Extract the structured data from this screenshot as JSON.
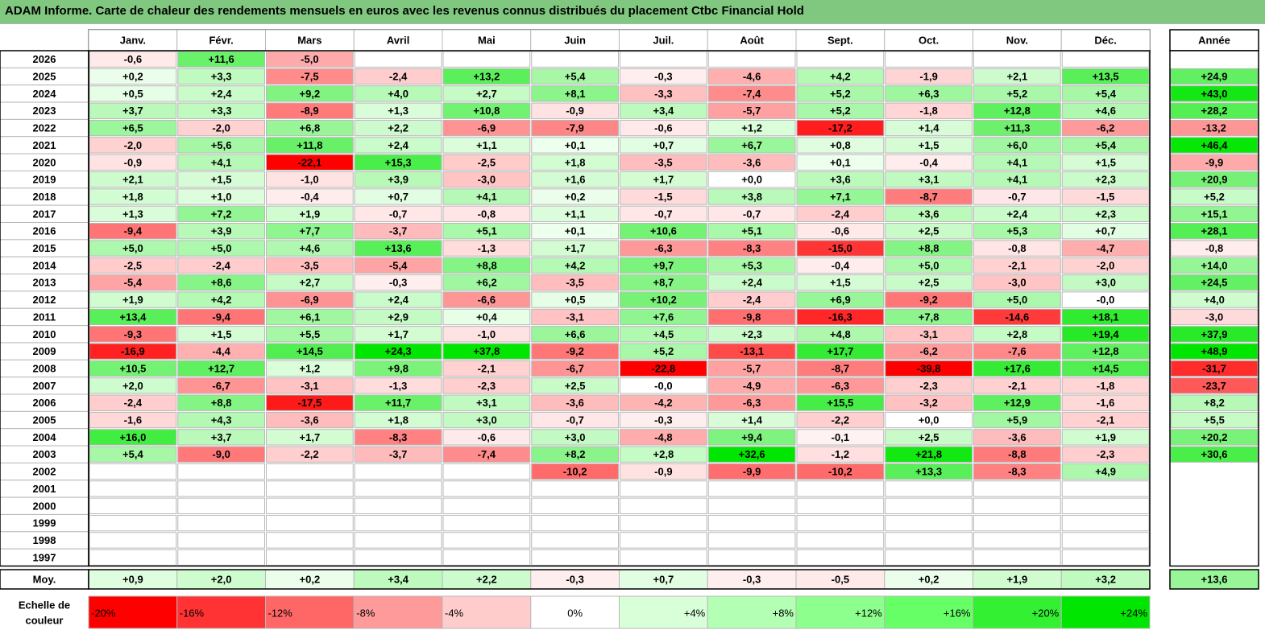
{
  "chart_data": {
    "type": "heatmap",
    "title": "ADAM Informe. Carte de chaleur des rendements mensuels en euros avec les revenus connus distribués du placement Ctbc Financial Hold",
    "months": [
      "Janv.",
      "Févr.",
      "Mars",
      "Avril",
      "Mai",
      "Juin",
      "Juil.",
      "Août",
      "Sept.",
      "Oct.",
      "Nov.",
      "Déc."
    ],
    "year_header": "Année",
    "average_label": "Moy.",
    "rows": [
      {
        "year": "2026",
        "months": [
          "-0,6",
          "+11,6",
          "-5,0",
          null,
          null,
          null,
          null,
          null,
          null,
          null,
          null,
          null
        ],
        "annual": null
      },
      {
        "year": "2025",
        "months": [
          "+0,2",
          "+3,3",
          "-7,5",
          "-2,4",
          "+13,2",
          "+5,4",
          "-0,3",
          "-4,6",
          "+4,2",
          "-1,9",
          "+2,1",
          "+13,5"
        ],
        "annual": "+24,9"
      },
      {
        "year": "2024",
        "months": [
          "+0,5",
          "+2,4",
          "+9,2",
          "+4,0",
          "+2,7",
          "+8,1",
          "-3,3",
          "-7,4",
          "+5,2",
          "+6,3",
          "+5,2",
          "+5,4"
        ],
        "annual": "+43,0"
      },
      {
        "year": "2023",
        "months": [
          "+3,7",
          "+3,3",
          "-8,9",
          "+1,3",
          "+10,8",
          "-0,9",
          "+3,4",
          "-5,7",
          "+5,2",
          "-1,8",
          "+12,8",
          "+4,6"
        ],
        "annual": "+28,2"
      },
      {
        "year": "2022",
        "months": [
          "+6,5",
          "-2,0",
          "+6,8",
          "+2,2",
          "-6,9",
          "-7,9",
          "-0,6",
          "+1,2",
          "-17,2",
          "+1,4",
          "+11,3",
          "-6,2"
        ],
        "annual": "-13,2"
      },
      {
        "year": "2021",
        "months": [
          "-2,0",
          "+5,6",
          "+11,8",
          "+2,4",
          "+1,1",
          "+0,1",
          "+0,7",
          "+6,7",
          "+0,8",
          "+1,5",
          "+6,0",
          "+5,4"
        ],
        "annual": "+46,4"
      },
      {
        "year": "2020",
        "months": [
          "-0,9",
          "+4,1",
          "-22,1",
          "+15,3",
          "-2,5",
          "+1,8",
          "-3,5",
          "-3,6",
          "+0,1",
          "-0,4",
          "+4,1",
          "+1,5"
        ],
        "annual": "-9,9"
      },
      {
        "year": "2019",
        "months": [
          "+2,1",
          "+1,5",
          "-1,0",
          "+3,9",
          "-3,0",
          "+1,6",
          "+1,7",
          "+0,0",
          "+3,6",
          "+3,1",
          "+4,1",
          "+2,3"
        ],
        "annual": "+20,9"
      },
      {
        "year": "2018",
        "months": [
          "+1,8",
          "+1,0",
          "-0,4",
          "+0,7",
          "+4,1",
          "+0,2",
          "-1,5",
          "+3,8",
          "+7,1",
          "-8,7",
          "-0,7",
          "-1,5"
        ],
        "annual": "+5,2"
      },
      {
        "year": "2017",
        "months": [
          "+1,3",
          "+7,2",
          "+1,9",
          "-0,7",
          "-0,8",
          "+1,1",
          "-0,7",
          "-0,7",
          "-2,4",
          "+3,6",
          "+2,4",
          "+2,3"
        ],
        "annual": "+15,1"
      },
      {
        "year": "2016",
        "months": [
          "-9,4",
          "+3,9",
          "+7,7",
          "-3,7",
          "+5,1",
          "+0,1",
          "+10,6",
          "+5,1",
          "-0,6",
          "+2,5",
          "+5,3",
          "+0,7"
        ],
        "annual": "+28,1"
      },
      {
        "year": "2015",
        "months": [
          "+5,0",
          "+5,0",
          "+4,6",
          "+13,6",
          "-1,3",
          "+1,7",
          "-6,3",
          "-8,3",
          "-15,0",
          "+8,8",
          "-0,8",
          "-4,7"
        ],
        "annual": "-0,8"
      },
      {
        "year": "2014",
        "months": [
          "-2,5",
          "-2,4",
          "-3,5",
          "-5,4",
          "+8,8",
          "+4,2",
          "+9,7",
          "+5,3",
          "-0,4",
          "+5,0",
          "-2,1",
          "-2,0"
        ],
        "annual": "+14,0"
      },
      {
        "year": "2013",
        "months": [
          "-5,4",
          "+8,6",
          "+2,7",
          "-0,3",
          "+6,2",
          "-3,5",
          "+8,7",
          "+2,4",
          "+1,5",
          "+2,5",
          "-3,0",
          "+3,0"
        ],
        "annual": "+24,5"
      },
      {
        "year": "2012",
        "months": [
          "+1,9",
          "+4,2",
          "-6,9",
          "+2,4",
          "-6,6",
          "+0,5",
          "+10,2",
          "-2,4",
          "+6,9",
          "-9,2",
          "+5,0",
          "-0,0"
        ],
        "annual": "+4,0"
      },
      {
        "year": "2011",
        "months": [
          "+13,4",
          "-9,4",
          "+6,1",
          "+2,9",
          "+0,4",
          "-3,1",
          "+7,6",
          "-9,8",
          "-16,3",
          "+7,8",
          "-14,6",
          "+18,1"
        ],
        "annual": "-3,0"
      },
      {
        "year": "2010",
        "months": [
          "-9,3",
          "+1,5",
          "+5,5",
          "+1,7",
          "-1,0",
          "+6,6",
          "+4,5",
          "+2,3",
          "+4,8",
          "-3,1",
          "+2,8",
          "+19,4"
        ],
        "annual": "+37,9"
      },
      {
        "year": "2009",
        "months": [
          "-16,9",
          "-4,4",
          "+14,5",
          "+24,3",
          "+37,8",
          "-9,2",
          "+5,2",
          "-13,1",
          "+17,7",
          "-6,2",
          "-7,6",
          "+12,8"
        ],
        "annual": "+48,9"
      },
      {
        "year": "2008",
        "months": [
          "+10,5",
          "+12,7",
          "+1,2",
          "+9,8",
          "-2,1",
          "-6,7",
          "-22,8",
          "-5,7",
          "-8,7",
          "-39,8",
          "+17,6",
          "+14,5"
        ],
        "annual": "-31,7"
      },
      {
        "year": "2007",
        "months": [
          "+2,0",
          "-6,7",
          "-3,1",
          "-1,3",
          "-2,3",
          "+2,5",
          "-0,0",
          "-4,9",
          "-6,3",
          "-2,3",
          "-2,1",
          "-1,8"
        ],
        "annual": "-23,7"
      },
      {
        "year": "2006",
        "months": [
          "-2,4",
          "+8,8",
          "-17,5",
          "+11,7",
          "+3,1",
          "-3,6",
          "-4,2",
          "-6,3",
          "+15,5",
          "-3,2",
          "+12,9",
          "-1,6"
        ],
        "annual": "+8,2"
      },
      {
        "year": "2005",
        "months": [
          "-1,6",
          "+4,3",
          "-3,6",
          "+1,8",
          "+3,0",
          "-0,7",
          "-0,3",
          "+1,4",
          "-2,2",
          "+0,0",
          "+5,9",
          "-2,1"
        ],
        "annual": "+5,5"
      },
      {
        "year": "2004",
        "months": [
          "+16,0",
          "+3,7",
          "+1,7",
          "-8,3",
          "-0,6",
          "+3,0",
          "-4,8",
          "+9,4",
          "-0,1",
          "+2,5",
          "-3,6",
          "+1,9"
        ],
        "annual": "+20,2"
      },
      {
        "year": "2003",
        "months": [
          "+5,4",
          "-9,0",
          "-2,2",
          "-3,7",
          "-7,4",
          "+8,2",
          "+2,8",
          "+32,6",
          "-1,2",
          "+21,8",
          "-8,8",
          "-2,3"
        ],
        "annual": "+30,6"
      },
      {
        "year": "2002",
        "months": [
          null,
          null,
          null,
          null,
          null,
          "-10,2",
          "-0,9",
          "-9,9",
          "-10,2",
          "+13,3",
          "-8,3",
          "+4,9"
        ],
        "annual": null
      },
      {
        "year": "2001",
        "months": [
          null,
          null,
          null,
          null,
          null,
          null,
          null,
          null,
          null,
          null,
          null,
          null
        ],
        "annual": null
      },
      {
        "year": "2000",
        "months": [
          null,
          null,
          null,
          null,
          null,
          null,
          null,
          null,
          null,
          null,
          null,
          null
        ],
        "annual": null
      },
      {
        "year": "1999",
        "months": [
          null,
          null,
          null,
          null,
          null,
          null,
          null,
          null,
          null,
          null,
          null,
          null
        ],
        "annual": null
      },
      {
        "year": "1998",
        "months": [
          null,
          null,
          null,
          null,
          null,
          null,
          null,
          null,
          null,
          null,
          null,
          null
        ],
        "annual": null
      },
      {
        "year": "1997",
        "months": [
          null,
          null,
          null,
          null,
          null,
          null,
          null,
          null,
          null,
          null,
          null,
          null
        ],
        "annual": null
      }
    ],
    "average": {
      "months": [
        "+0,9",
        "+2,0",
        "+0,2",
        "+3,4",
        "+2,2",
        "-0,3",
        "+0,7",
        "-0,3",
        "-0,5",
        "+0,2",
        "+1,9",
        "+3,2"
      ],
      "annual": "+13,6"
    },
    "color_scale": {
      "label": "Echelle de couleur",
      "stops": [
        "-20%",
        "-16%",
        "-12%",
        "-8%",
        "-4%",
        "0%",
        "+4%",
        "+8%",
        "+12%",
        "+16%",
        "+20%",
        "+24%"
      ]
    }
  }
}
